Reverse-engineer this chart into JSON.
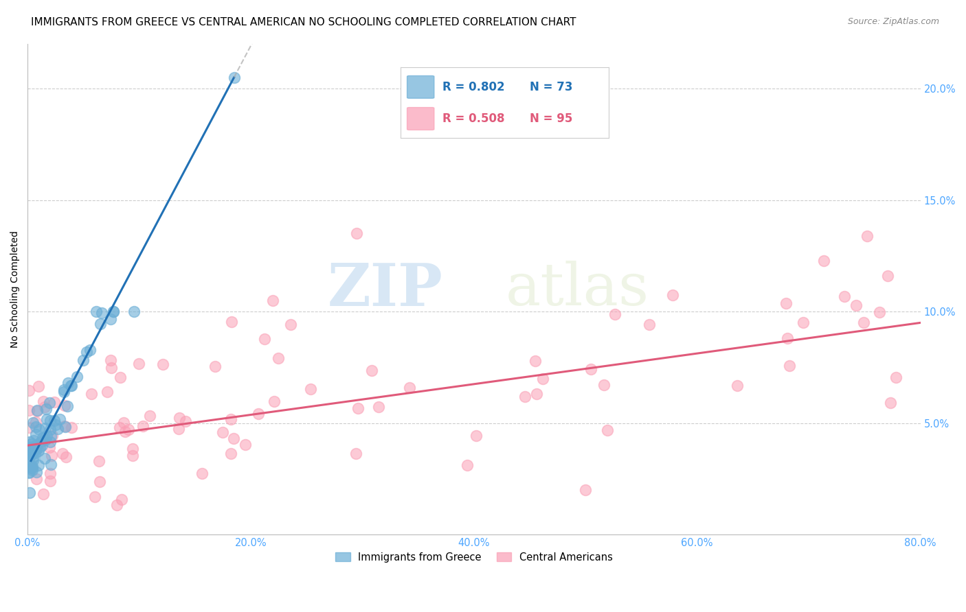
{
  "title": "IMMIGRANTS FROM GREECE VS CENTRAL AMERICAN NO SCHOOLING COMPLETED CORRELATION CHART",
  "source": "Source: ZipAtlas.com",
  "ylabel": "No Schooling Completed",
  "xlim": [
    0.0,
    0.8
  ],
  "ylim": [
    0.0,
    0.22
  ],
  "xticks": [
    0.0,
    0.2,
    0.4,
    0.6,
    0.8
  ],
  "xticklabels": [
    "0.0%",
    "20.0%",
    "40.0%",
    "60.0%",
    "80.0%"
  ],
  "yticks": [
    0.0,
    0.05,
    0.1,
    0.15,
    0.2
  ],
  "yticklabels": [
    "",
    "5.0%",
    "10.0%",
    "15.0%",
    "20.0%"
  ],
  "greece_color": "#6baed6",
  "central_color": "#fa9fb5",
  "greece_line_color": "#2171b5",
  "central_line_color": "#e05a7a",
  "greece_R": 0.802,
  "greece_N": 73,
  "central_R": 0.508,
  "central_N": 95,
  "watermark_zip": "ZIP",
  "watermark_atlas": "atlas",
  "background_color": "#ffffff",
  "grid_color": "#cccccc",
  "tick_color": "#4da6ff",
  "title_fontsize": 11,
  "source_fontsize": 9
}
